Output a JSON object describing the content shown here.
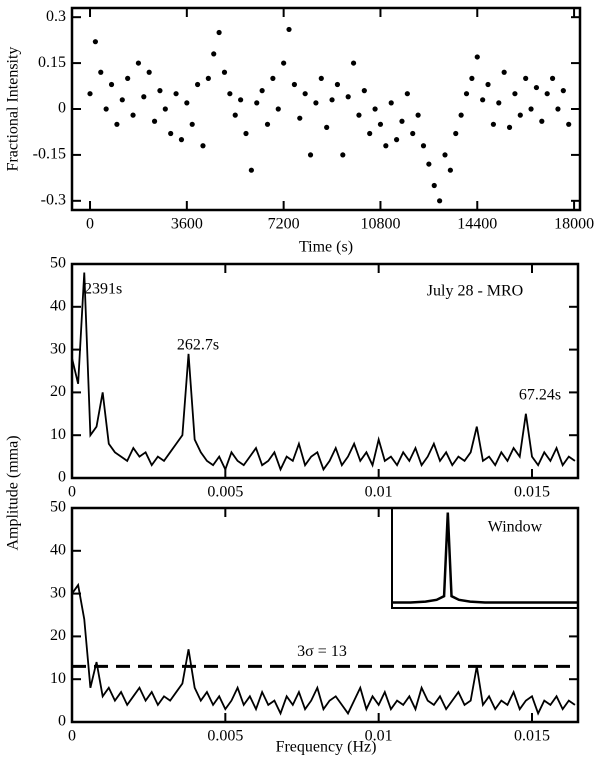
{
  "chart_data": [
    {
      "type": "scatter",
      "ylabel": "Fractional Intensity",
      "xlabel": "Time (s)",
      "color": "#000000",
      "x": [
        0,
        200,
        400,
        600,
        800,
        1000,
        1200,
        1400,
        1600,
        1800,
        2000,
        2200,
        2400,
        2600,
        2800,
        3000,
        3200,
        3400,
        3600,
        3800,
        4000,
        4200,
        4400,
        4600,
        4800,
        5000,
        5200,
        5400,
        5600,
        5800,
        6000,
        6200,
        6400,
        6600,
        6800,
        7000,
        7200,
        7400,
        7600,
        7800,
        8000,
        8200,
        8400,
        8600,
        8800,
        9000,
        9200,
        9400,
        9600,
        9800,
        10000,
        10200,
        10400,
        10600,
        10800,
        11000,
        11200,
        11400,
        11600,
        11800,
        12000,
        12200,
        12400,
        12600,
        12800,
        13000,
        13200,
        13400,
        13600,
        13800,
        14000,
        14200,
        14400,
        14600,
        14800,
        15000,
        15200,
        15400,
        15600,
        15800,
        16000,
        16200,
        16400,
        16600,
        16800,
        17000,
        17200,
        17400,
        17600,
        17800
      ],
      "values": [
        0.05,
        0.22,
        0.12,
        0.0,
        0.08,
        -0.05,
        0.03,
        0.1,
        -0.02,
        0.15,
        0.04,
        0.12,
        -0.04,
        0.06,
        0.0,
        -0.08,
        0.05,
        -0.1,
        0.02,
        -0.05,
        0.08,
        -0.12,
        0.1,
        0.18,
        0.25,
        0.12,
        0.05,
        -0.02,
        0.03,
        -0.08,
        -0.2,
        0.02,
        0.06,
        -0.05,
        0.1,
        0.0,
        0.15,
        0.26,
        0.08,
        -0.03,
        0.05,
        -0.15,
        0.02,
        0.1,
        -0.06,
        0.03,
        0.08,
        -0.15,
        0.04,
        0.15,
        -0.02,
        0.06,
        -0.08,
        0.0,
        -0.05,
        -0.12,
        0.02,
        -0.1,
        -0.04,
        0.05,
        -0.08,
        -0.02,
        -0.12,
        -0.18,
        -0.25,
        -0.3,
        -0.15,
        -0.2,
        -0.08,
        -0.02,
        0.05,
        0.1,
        0.17,
        0.03,
        0.08,
        -0.05,
        0.02,
        0.12,
        -0.06,
        0.05,
        -0.02,
        0.1,
        0.0,
        0.07,
        -0.04,
        0.05,
        0.1,
        0.0,
        0.06,
        -0.05
      ],
      "xlim": [
        -670,
        18220
      ],
      "ylim": [
        -0.33,
        0.33
      ],
      "xticks": [
        0,
        3600,
        7200,
        10800,
        14400,
        18000
      ],
      "yticks": [
        -0.3,
        -0.15,
        0,
        0.15,
        0.3
      ]
    },
    {
      "type": "line",
      "title": "July 28 - MRO",
      "ylabel": "Amplitude (mma)",
      "color": "#000000",
      "annotations": [
        "2391s",
        "262.7s",
        "67.24s"
      ],
      "x": [
        0,
        0.0002,
        0.0004,
        0.0006,
        0.0008,
        0.001,
        0.0012,
        0.0014,
        0.0016,
        0.0018,
        0.002,
        0.0022,
        0.0024,
        0.0026,
        0.0028,
        0.003,
        0.0032,
        0.0034,
        0.0036,
        0.0038,
        0.004,
        0.0042,
        0.0044,
        0.0046,
        0.0048,
        0.005,
        0.0052,
        0.0054,
        0.0056,
        0.0058,
        0.006,
        0.0062,
        0.0064,
        0.0066,
        0.0068,
        0.007,
        0.0072,
        0.0074,
        0.0076,
        0.0078,
        0.008,
        0.0082,
        0.0084,
        0.0086,
        0.0088,
        0.009,
        0.0092,
        0.0094,
        0.0096,
        0.0098,
        0.01,
        0.0102,
        0.0104,
        0.0106,
        0.0108,
        0.011,
        0.0112,
        0.0114,
        0.0116,
        0.0118,
        0.012,
        0.0122,
        0.0124,
        0.0126,
        0.0128,
        0.013,
        0.0132,
        0.0134,
        0.0136,
        0.0138,
        0.014,
        0.0142,
        0.0144,
        0.0146,
        0.0148,
        0.015,
        0.0152,
        0.0154,
        0.0156,
        0.0158,
        0.016,
        0.0162,
        0.0164
      ],
      "values": [
        28,
        22,
        48,
        10,
        12,
        20,
        8,
        6,
        5,
        4,
        7,
        5,
        6,
        3,
        5,
        4,
        6,
        8,
        10,
        29,
        9,
        6,
        4,
        3,
        5,
        2,
        6,
        4,
        3,
        5,
        7,
        3,
        4,
        6,
        2,
        5,
        4,
        8,
        3,
        5,
        6,
        2,
        4,
        7,
        3,
        5,
        8,
        4,
        6,
        3,
        9,
        4,
        5,
        3,
        6,
        4,
        7,
        3,
        5,
        8,
        4,
        6,
        3,
        5,
        4,
        6,
        12,
        4,
        5,
        3,
        6,
        4,
        7,
        5,
        15,
        5,
        3,
        6,
        4,
        7,
        3,
        5,
        4
      ],
      "xlim": [
        0,
        0.0165
      ],
      "ylim": [
        0,
        50
      ],
      "xticks": [
        0,
        0.005,
        0.01,
        0.015
      ],
      "yticks": [
        0,
        10,
        20,
        30,
        40,
        50
      ]
    },
    {
      "type": "line",
      "xlabel": "Frequency (Hz)",
      "color": "#000000",
      "threshold": 13,
      "threshold_label": "3σ = 13",
      "x": [
        0,
        0.0002,
        0.0004,
        0.0006,
        0.0008,
        0.001,
        0.0012,
        0.0014,
        0.0016,
        0.0018,
        0.002,
        0.0022,
        0.0024,
        0.0026,
        0.0028,
        0.003,
        0.0032,
        0.0034,
        0.0036,
        0.0038,
        0.004,
        0.0042,
        0.0044,
        0.0046,
        0.0048,
        0.005,
        0.0052,
        0.0054,
        0.0056,
        0.0058,
        0.006,
        0.0062,
        0.0064,
        0.0066,
        0.0068,
        0.007,
        0.0072,
        0.0074,
        0.0076,
        0.0078,
        0.008,
        0.0082,
        0.0084,
        0.0086,
        0.0088,
        0.009,
        0.0092,
        0.0094,
        0.0096,
        0.0098,
        0.01,
        0.0102,
        0.0104,
        0.0106,
        0.0108,
        0.011,
        0.0112,
        0.0114,
        0.0116,
        0.0118,
        0.012,
        0.0122,
        0.0124,
        0.0126,
        0.0128,
        0.013,
        0.0132,
        0.0134,
        0.0136,
        0.0138,
        0.014,
        0.0142,
        0.0144,
        0.0146,
        0.0148,
        0.015,
        0.0152,
        0.0154,
        0.0156,
        0.0158,
        0.016,
        0.0162,
        0.0164
      ],
      "values": [
        30,
        32,
        24,
        8,
        14,
        6,
        8,
        5,
        7,
        4,
        6,
        8,
        5,
        7,
        4,
        6,
        5,
        7,
        9,
        17,
        8,
        5,
        7,
        4,
        6,
        3,
        5,
        8,
        4,
        6,
        3,
        7,
        4,
        5,
        2,
        6,
        4,
        7,
        3,
        5,
        8,
        3,
        5,
        6,
        4,
        2,
        5,
        8,
        3,
        6,
        4,
        7,
        3,
        5,
        4,
        6,
        3,
        8,
        5,
        4,
        6,
        3,
        5,
        7,
        4,
        5,
        13,
        4,
        6,
        3,
        5,
        4,
        7,
        3,
        5,
        6,
        2,
        5,
        4,
        6,
        3,
        5,
        4
      ],
      "xlim": [
        0,
        0.0165
      ],
      "ylim": [
        0,
        50
      ],
      "xticks": [
        0,
        0.005,
        0.01,
        0.015
      ],
      "yticks": [
        0,
        10,
        20,
        30,
        40,
        50
      ],
      "inset": {
        "title": "Window",
        "x": [
          -0.0015,
          -0.001,
          -0.0006,
          -0.0003,
          -0.0001,
          0,
          0.0001,
          0.0003,
          0.0006,
          0.001,
          0.002,
          0.003,
          0.0035
        ],
        "values": [
          0.01,
          0.01,
          0.02,
          0.04,
          0.08,
          1,
          0.08,
          0.04,
          0.02,
          0.01,
          0.01,
          0.01,
          0.01
        ],
        "xlim": [
          -0.0015,
          0.0035
        ],
        "ylim": [
          -0.05,
          1.05
        ]
      }
    }
  ]
}
